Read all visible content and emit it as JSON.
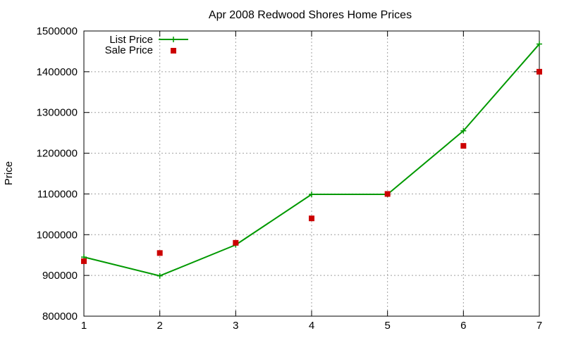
{
  "chart_data": {
    "type": "line",
    "title": "Apr 2008 Redwood Shores Home Prices",
    "xlabel": "",
    "ylabel": "Price",
    "x": [
      1,
      2,
      3,
      4,
      5,
      6,
      7
    ],
    "xlim": [
      1,
      7
    ],
    "ylim": [
      800000,
      1500000
    ],
    "x_ticks": [
      "1",
      "2",
      "3",
      "4",
      "5",
      "6",
      "7"
    ],
    "y_ticks": [
      "800000",
      "900000",
      "1000000",
      "1100000",
      "1200000",
      "1300000",
      "1400000",
      "1500000"
    ],
    "grid": true,
    "legend_position": "top-left",
    "series": [
      {
        "name": "List Price",
        "style": "line with plus markers",
        "color": "#009900",
        "values": [
          945000,
          899000,
          975000,
          1099000,
          1099000,
          1255000,
          1468000
        ]
      },
      {
        "name": "Sale Price",
        "style": "square markers",
        "color": "#cc0000",
        "values": [
          935000,
          955000,
          980000,
          1040000,
          1100000,
          1218000,
          1400000
        ]
      }
    ]
  }
}
